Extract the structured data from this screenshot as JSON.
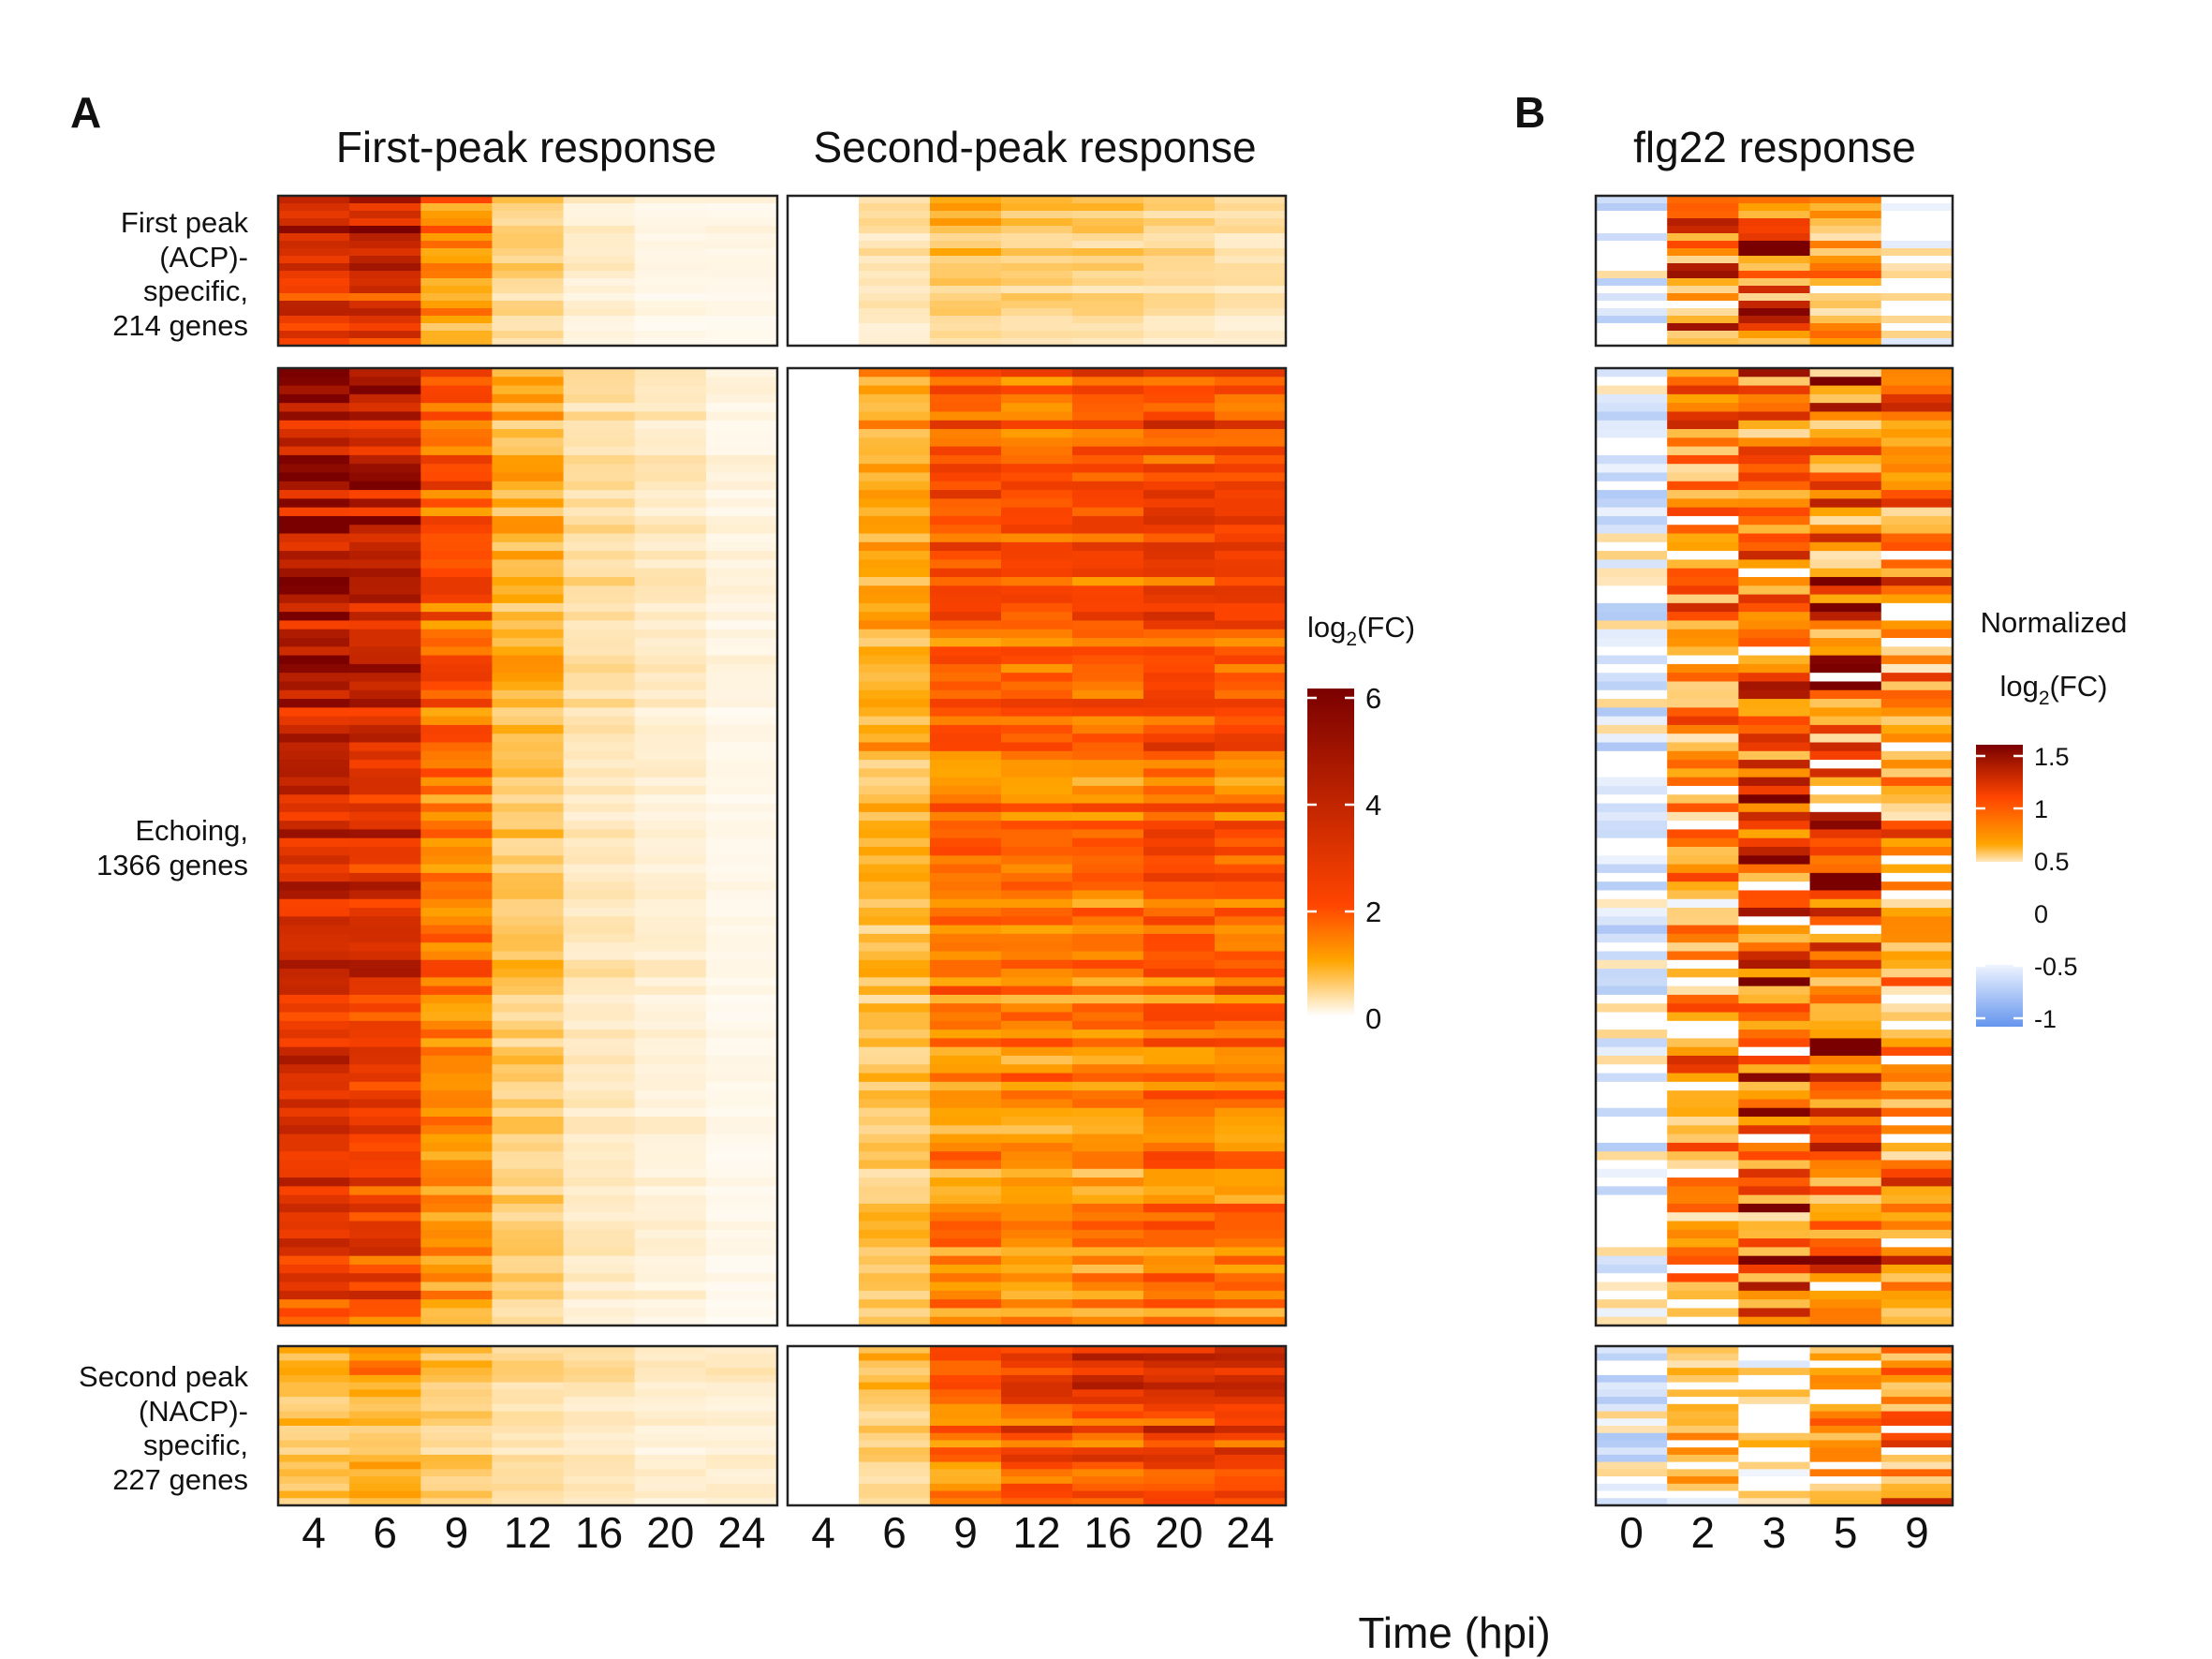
{
  "panels": {
    "a": {
      "letter": "A",
      "title_first": "First-peak response",
      "title_second": "Second-peak response"
    },
    "b": {
      "letter": "B",
      "title": "flg22 response"
    }
  },
  "x_label": "Time (hpi)",
  "row_groups": [
    {
      "id": "acp",
      "lines": [
        "First peak",
        "(ACP)-",
        "specific,",
        "214 genes"
      ]
    },
    {
      "id": "echo",
      "lines": [
        "Echoing,",
        "1366 genes"
      ]
    },
    {
      "id": "nacp",
      "lines": [
        "Second peak",
        "(NACP)-",
        "specific,",
        "227 genes"
      ]
    }
  ],
  "legend_a": {
    "title_main": "log",
    "title_sub": "2",
    "title_rest": "(FC)",
    "ticks": [
      "6",
      "4",
      "2",
      "0"
    ]
  },
  "legend_b": {
    "title_line1": "Normalized",
    "title_main": "log",
    "title_sub": "2",
    "title_rest": "(FC)",
    "ticks": [
      "1.5",
      "1",
      "0.5",
      "0",
      "-0.5",
      "-1"
    ]
  },
  "colors": {
    "high": "#7a0000",
    "mid": "#ff4500",
    "low": "#ffa500",
    "zero": "#ffffff",
    "negative": "#6495ed"
  },
  "chart_data": [
    {
      "type": "heatmap",
      "title": "First-peak response",
      "x": [
        "4",
        "6",
        "9",
        "12",
        "16",
        "20",
        "24"
      ],
      "rows": [
        "First peak (ACP)-specific, 214 genes",
        "Echoing, 1366 genes",
        "Second peak (NACP)-specific, 227 genes"
      ],
      "values_mean_log2fc": [
        [
          3.2,
          3.6,
          1.2,
          0.5,
          0.2,
          0.1,
          0.1
        ],
        [
          3.8,
          3.3,
          1.6,
          0.7,
          0.3,
          0.2,
          0.1
        ],
        [
          0.7,
          0.9,
          0.6,
          0.4,
          0.3,
          0.2,
          0.2
        ]
      ],
      "color_range": [
        0,
        6
      ]
    },
    {
      "type": "heatmap",
      "title": "Second-peak response",
      "x": [
        "4",
        "6",
        "9",
        "12",
        "16",
        "20",
        "24"
      ],
      "rows": [
        "First peak (ACP)-specific, 214 genes",
        "Echoing, 1366 genes",
        "Second peak (NACP)-specific, 227 genes"
      ],
      "values_mean_log2fc": [
        [
          0.0,
          0.3,
          0.6,
          0.5,
          0.5,
          0.4,
          0.3
        ],
        [
          0.0,
          0.8,
          1.6,
          1.5,
          1.6,
          1.9,
          1.8
        ],
        [
          0.0,
          0.6,
          1.6,
          2.3,
          2.5,
          2.9,
          2.8
        ]
      ],
      "color_range": [
        0,
        6
      ]
    },
    {
      "type": "heatmap",
      "title": "flg22 response",
      "x": [
        "0",
        "2",
        "3",
        "5",
        "9"
      ],
      "rows": [
        "First peak (ACP)-specific, 214 genes",
        "Echoing, 1366 genes",
        "Second peak (NACP)-specific, 227 genes"
      ],
      "values_mean_normalized_log2fc": [
        [
          0.0,
          0.6,
          0.8,
          0.4,
          0.1
        ],
        [
          0.0,
          0.5,
          0.7,
          0.7,
          0.5
        ],
        [
          0.0,
          0.3,
          0.2,
          0.4,
          0.5
        ]
      ],
      "color_range": [
        -1,
        1.5
      ]
    }
  ]
}
